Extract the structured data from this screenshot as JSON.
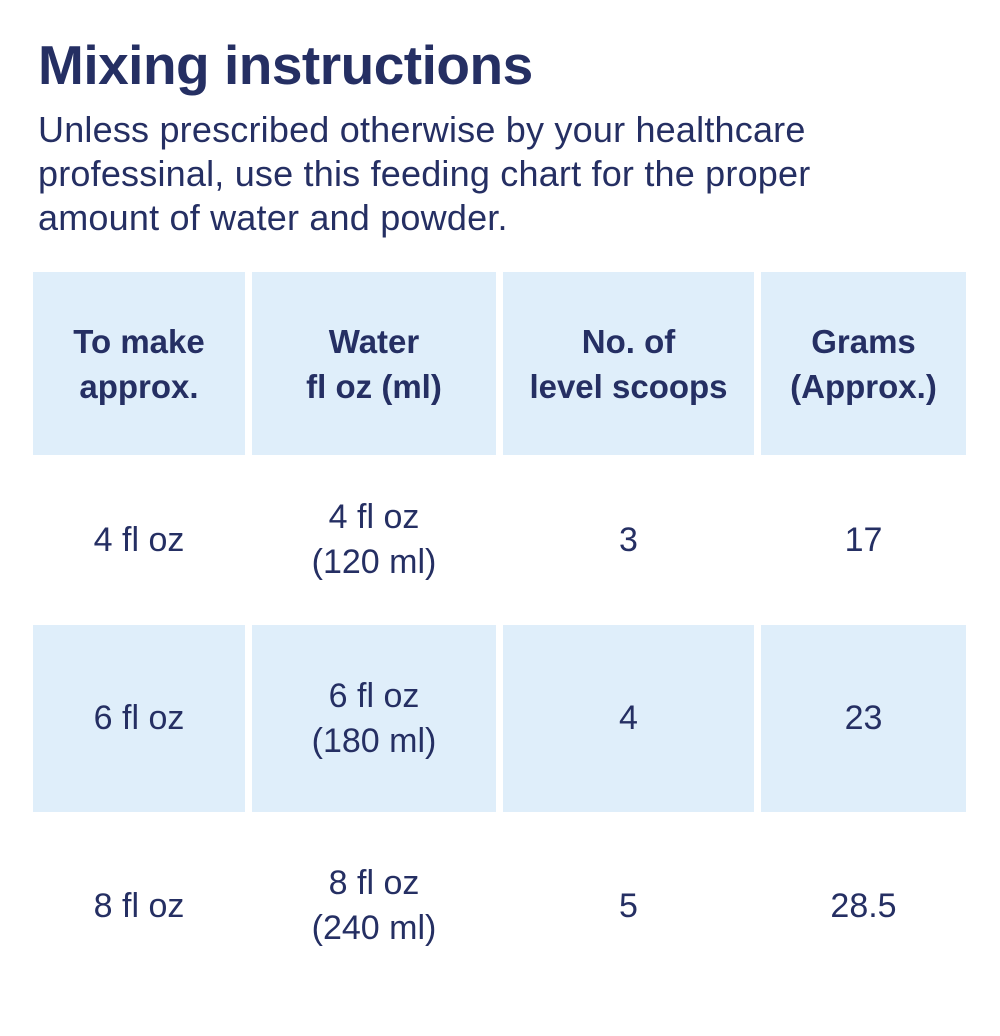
{
  "colors": {
    "text_navy": "#252f63",
    "cell_blue": "#dfeefa",
    "page_background": "#ffffff"
  },
  "header": {
    "title": "Mixing instructions"
  },
  "intro": {
    "text": "Unless prescribed otherwise by your healthcare professinal, use this feeding chart for the proper amount of water and powder.",
    "lines": [
      "Unless prescribed otherwise by your healthcare",
      "professinal, use this feeding chart for the proper",
      "amount of water and powder."
    ]
  },
  "table": {
    "columns": [
      {
        "label_line1": "To make",
        "label_line2": "approx."
      },
      {
        "label_line1": "Water",
        "label_line2": "fl oz (ml)"
      },
      {
        "label_line1": "No. of",
        "label_line2": "level scoops"
      },
      {
        "label_line1": "Grams",
        "label_line2": "(Approx.)"
      }
    ],
    "rows": [
      {
        "to_make": "4 fl oz",
        "water_line1": "4 fl oz",
        "water_line2": "(120 ml)",
        "scoops": "3",
        "grams": "17"
      },
      {
        "to_make": "6 fl oz",
        "water_line1": "6 fl oz",
        "water_line2": "(180 ml)",
        "scoops": "4",
        "grams": "23"
      },
      {
        "to_make": "8 fl oz",
        "water_line1": "8 fl oz",
        "water_line2": "(240 ml)",
        "scoops": "5",
        "grams": "28.5"
      }
    ]
  }
}
